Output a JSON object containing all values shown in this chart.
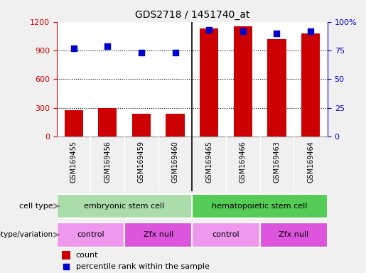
{
  "title": "GDS2718 / 1451740_at",
  "samples": [
    "GSM169455",
    "GSM169456",
    "GSM169459",
    "GSM169460",
    "GSM169465",
    "GSM169466",
    "GSM169463",
    "GSM169464"
  ],
  "counts": [
    275,
    300,
    240,
    235,
    1130,
    1155,
    1020,
    1080
  ],
  "percentiles": [
    77,
    79,
    73,
    73,
    93,
    92,
    90,
    92
  ],
  "left_ylim": [
    0,
    1200
  ],
  "right_ylim": [
    0,
    100
  ],
  "left_yticks": [
    0,
    300,
    600,
    900,
    1200
  ],
  "right_yticks": [
    0,
    25,
    50,
    75,
    100
  ],
  "right_yticklabels": [
    "0",
    "25",
    "50",
    "75",
    "100%"
  ],
  "bar_color": "#cc0000",
  "scatter_color": "#0000cc",
  "cell_type_groups": [
    {
      "label": "embryonic stem cell",
      "start": 0,
      "end": 4,
      "color": "#aaddaa"
    },
    {
      "label": "hematopoietic stem cell",
      "start": 4,
      "end": 8,
      "color": "#55cc55"
    }
  ],
  "genotype_groups": [
    {
      "label": "control",
      "start": 0,
      "end": 2,
      "color": "#ee99ee"
    },
    {
      "label": "Zfx null",
      "start": 2,
      "end": 4,
      "color": "#dd55dd"
    },
    {
      "label": "control",
      "start": 4,
      "end": 6,
      "color": "#ee99ee"
    },
    {
      "label": "Zfx null",
      "start": 6,
      "end": 8,
      "color": "#dd55dd"
    }
  ],
  "cell_type_label": "cell type",
  "genotype_label": "genotype/variation",
  "legend_count_label": "count",
  "legend_percentile_label": "percentile rank within the sample",
  "bg_color": "#f0f0f0",
  "plot_bg_color": "#ffffff",
  "title_color": "#000000",
  "left_axis_color": "#cc0000",
  "right_axis_color": "#0000cc"
}
